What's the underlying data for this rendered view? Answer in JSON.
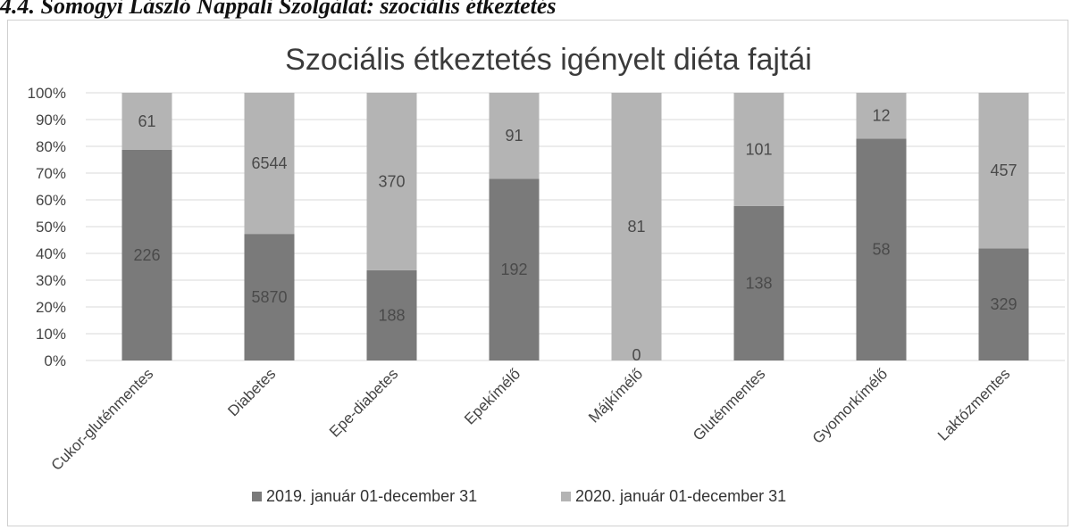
{
  "heading": "4.4. Somogyi László Nappali Szolgálat: szociális étkeztetés",
  "chart_data": {
    "type": "bar",
    "stacked": "percent",
    "title": "Szociális étkeztetés igényelt diéta fajtái",
    "categories": [
      "Cukor-gluténmentes",
      "Diabetes",
      "Epe-diabetes",
      "Epekímélő",
      "Májkímélő",
      "Gluténmentes",
      "Gyomorkímélő",
      "Laktózmentes"
    ],
    "series": [
      {
        "name": "2019. január 01-december 31",
        "values": [
          226,
          5870,
          188,
          192,
          0,
          138,
          58,
          329
        ],
        "color": "#7a7a7a"
      },
      {
        "name": "2020. január 01-december 31",
        "values": [
          61,
          6544,
          370,
          91,
          81,
          101,
          12,
          457
        ],
        "color": "#b4b4b4"
      }
    ],
    "yticks": [
      "0%",
      "10%",
      "20%",
      "30%",
      "40%",
      "50%",
      "60%",
      "70%",
      "80%",
      "90%",
      "100%"
    ],
    "ylim": [
      0,
      100
    ],
    "grid": true,
    "legend": "bottom"
  }
}
